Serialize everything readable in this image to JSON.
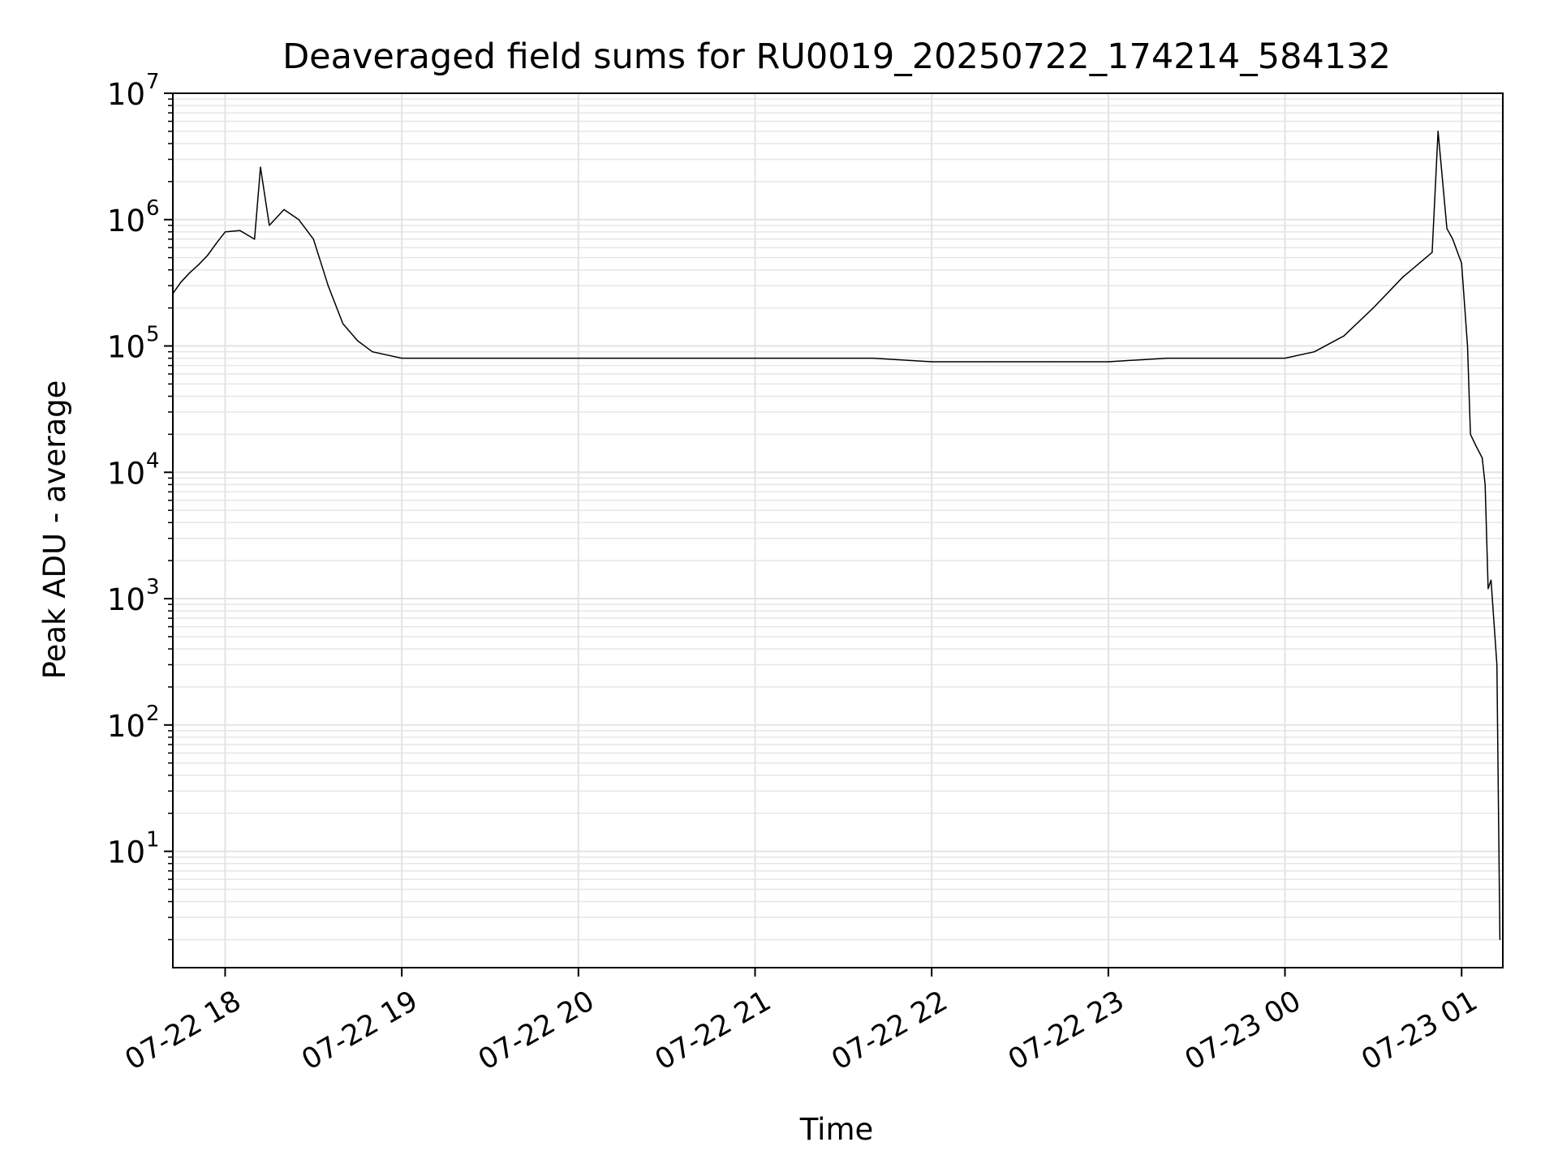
{
  "chart_data": {
    "type": "line",
    "title": "Deaveraged field sums for RU0019_20250722_174214_584132",
    "xlabel": "Time",
    "ylabel": "Peak ADU - average",
    "yscale": "log",
    "ylim": [
      1.2,
      10000000
    ],
    "xlim": [
      "2025-07-22T17:42:14",
      "2025-07-23T01:14:00"
    ],
    "grid": true,
    "line_color": "#000000",
    "x_ticks": [
      {
        "label": "07-22 18",
        "time": "2025-07-22T18:00:00"
      },
      {
        "label": "07-22 19",
        "time": "2025-07-22T19:00:00"
      },
      {
        "label": "07-22 20",
        "time": "2025-07-22T20:00:00"
      },
      {
        "label": "07-22 21",
        "time": "2025-07-22T21:00:00"
      },
      {
        "label": "07-22 22",
        "time": "2025-07-22T22:00:00"
      },
      {
        "label": "07-22 23",
        "time": "2025-07-22T23:00:00"
      },
      {
        "label": "07-23 00",
        "time": "2025-07-23T00:00:00"
      },
      {
        "label": "07-23 01",
        "time": "2025-07-23T01:00:00"
      }
    ],
    "y_ticks": [
      {
        "base": "10",
        "exp": "1",
        "value": 10
      },
      {
        "base": "10",
        "exp": "2",
        "value": 100
      },
      {
        "base": "10",
        "exp": "3",
        "value": 1000
      },
      {
        "base": "10",
        "exp": "4",
        "value": 10000
      },
      {
        "base": "10",
        "exp": "5",
        "value": 100000
      },
      {
        "base": "10",
        "exp": "6",
        "value": 1000000
      },
      {
        "base": "10",
        "exp": "7",
        "value": 10000000
      }
    ],
    "series": [
      {
        "x": [
          "2025-07-22T17:42:14",
          "2025-07-22T17:45:00",
          "2025-07-22T17:48:00",
          "2025-07-22T17:51:00",
          "2025-07-22T17:54:00",
          "2025-07-22T17:57:00",
          "2025-07-22T18:00:00",
          "2025-07-22T18:05:00",
          "2025-07-22T18:10:00",
          "2025-07-22T18:12:00",
          "2025-07-22T18:15:00",
          "2025-07-22T18:20:00",
          "2025-07-22T18:25:00",
          "2025-07-22T18:30:00",
          "2025-07-22T18:35:00",
          "2025-07-22T18:40:00",
          "2025-07-22T18:45:00",
          "2025-07-22T18:50:00",
          "2025-07-22T19:00:00",
          "2025-07-22T19:20:00",
          "2025-07-22T19:40:00",
          "2025-07-22T20:00:00",
          "2025-07-22T20:20:00",
          "2025-07-22T20:40:00",
          "2025-07-22T21:00:00",
          "2025-07-22T21:20:00",
          "2025-07-22T21:40:00",
          "2025-07-22T22:00:00",
          "2025-07-22T22:20:00",
          "2025-07-22T22:40:00",
          "2025-07-22T23:00:00",
          "2025-07-22T23:20:00",
          "2025-07-22T23:40:00",
          "2025-07-23T00:00:00",
          "2025-07-23T00:10:00",
          "2025-07-23T00:20:00",
          "2025-07-23T00:30:00",
          "2025-07-23T00:40:00",
          "2025-07-23T00:50:00",
          "2025-07-23T00:52:00",
          "2025-07-23T00:55:00",
          "2025-07-23T00:57:00",
          "2025-07-23T01:00:00",
          "2025-07-23T01:02:00",
          "2025-07-23T01:03:00",
          "2025-07-23T01:05:00",
          "2025-07-23T01:07:00",
          "2025-07-23T01:08:00",
          "2025-07-23T01:09:00",
          "2025-07-23T01:10:00",
          "2025-07-23T01:12:00",
          "2025-07-23T01:13:00"
        ],
        "y": [
          260000,
          320000,
          380000,
          440000,
          520000,
          650000,
          800000,
          820000,
          700000,
          2600000,
          900000,
          1200000,
          1000000,
          700000,
          300000,
          150000,
          110000,
          90000,
          80000,
          80000,
          80000,
          80000,
          80000,
          80000,
          80000,
          80000,
          80000,
          75000,
          75000,
          75000,
          75000,
          80000,
          80000,
          80000,
          90000,
          120000,
          200000,
          350000,
          550000,
          5000000,
          850000,
          700000,
          450000,
          100000,
          20000,
          16000,
          13000,
          8000,
          1200,
          1400,
          300,
          2
        ]
      }
    ]
  }
}
